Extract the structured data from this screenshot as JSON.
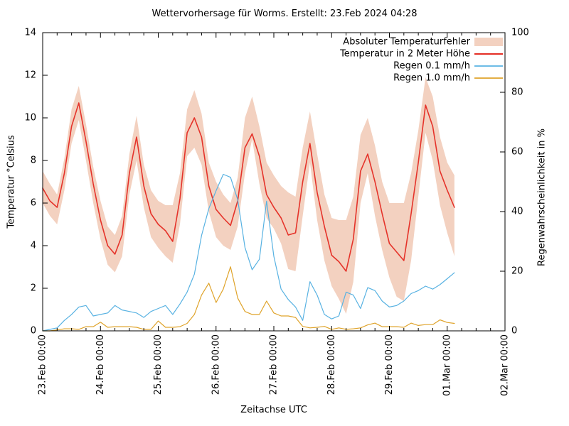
{
  "chart_data": {
    "type": "line",
    "title": "Wettervorhersage für Worms. Erstellt: 23.Feb 2024 04:28",
    "xlabel": "Zeitachse UTC",
    "ylabel_left": "Temperatur °Celsius",
    "ylabel_right": "Regenwahrscheinlichkeit in %",
    "x_tick_labels": [
      "23.Feb 00:00",
      "24.Feb 00:00",
      "25.Feb 00:00",
      "26.Feb 00:00",
      "27.Feb 00:00",
      "28.Feb 00:00",
      "29.Feb 00:00",
      "01.Mar 00:00",
      "02.Mar 00:00"
    ],
    "x_range_days": [
      0,
      8
    ],
    "x_minor_tick_hours": 6,
    "ylim_left": [
      0,
      14
    ],
    "yticks_left": [
      0,
      2,
      4,
      6,
      8,
      10,
      12,
      14
    ],
    "ylim_right": [
      0,
      100
    ],
    "yticks_right": [
      0,
      20,
      40,
      60,
      80,
      100
    ],
    "grid": false,
    "legend_position": "top-right-inside",
    "sample_step_hours": 3,
    "data_start": "23.Feb 00:00",
    "data_end_hours": 171,
    "series": [
      {
        "name": "Absoluter Temperaturfehler",
        "type": "band",
        "axis": "left",
        "color": "#f3d1c0",
        "upper": [
          7.5,
          6.9,
          6.4,
          8.1,
          10.4,
          11.5,
          9.7,
          7.7,
          6.1,
          4.9,
          4.5,
          5.4,
          8.3,
          10.1,
          7.8,
          6.6,
          6.1,
          5.9,
          5.9,
          7.4,
          10.4,
          11.3,
          10.2,
          7.9,
          7.0,
          6.4,
          6.0,
          7.2,
          10.0,
          11.0,
          9.6,
          7.9,
          7.3,
          6.8,
          6.5,
          6.3,
          8.6,
          10.3,
          8.3,
          6.4,
          5.3,
          5.2,
          5.2,
          6.3,
          9.2,
          10.0,
          8.7,
          7.0,
          6.0,
          6.0,
          6.0,
          7.4,
          9.4,
          11.9,
          11.0,
          9.1,
          7.9,
          7.3
        ],
        "lower": [
          6.0,
          5.4,
          5.0,
          6.6,
          8.8,
          9.9,
          8.0,
          6.0,
          4.3,
          3.1,
          2.75,
          3.5,
          6.4,
          8.0,
          5.8,
          4.4,
          3.9,
          3.5,
          3.2,
          5.0,
          8.2,
          8.6,
          7.8,
          5.6,
          4.4,
          4.0,
          3.8,
          4.9,
          7.4,
          9.0,
          6.9,
          5.3,
          4.8,
          4.1,
          2.9,
          2.8,
          5.4,
          7.9,
          5.2,
          3.3,
          2.1,
          1.5,
          0.8,
          2.3,
          6.0,
          7.4,
          5.4,
          3.8,
          2.5,
          1.6,
          1.4,
          3.3,
          6.3,
          9.3,
          8.0,
          5.9,
          4.6,
          3.5
        ]
      },
      {
        "name": "Temperatur in 2 Meter Höhe",
        "type": "line",
        "axis": "left",
        "color": "#e5332a",
        "stroke_width": 1.6,
        "values": [
          6.7,
          6.1,
          5.8,
          7.4,
          9.6,
          10.7,
          8.9,
          6.9,
          5.2,
          4.0,
          3.6,
          4.5,
          7.4,
          9.1,
          6.8,
          5.5,
          5.0,
          4.7,
          4.2,
          6.2,
          9.3,
          10.0,
          9.1,
          6.8,
          5.7,
          5.3,
          4.95,
          6.1,
          8.6,
          9.25,
          8.2,
          6.4,
          5.8,
          5.3,
          4.5,
          4.6,
          7.0,
          8.8,
          6.5,
          4.9,
          3.55,
          3.25,
          2.8,
          4.3,
          7.5,
          8.3,
          7.0,
          5.5,
          4.1,
          3.7,
          3.3,
          5.5,
          7.9,
          10.6,
          9.6,
          7.5,
          6.6,
          5.8
        ]
      },
      {
        "name": "Regen 0.1 mm/h",
        "type": "line",
        "axis": "right",
        "color": "#58b2e2",
        "stroke_width": 1.2,
        "values": [
          0,
          0.5,
          1,
          3.5,
          5.5,
          8,
          8.5,
          5,
          5.5,
          6,
          8.5,
          7,
          6.5,
          6,
          4.5,
          6.5,
          7.5,
          8.5,
          5.5,
          9,
          13,
          19,
          32,
          41,
          47,
          52.5,
          51.5,
          44,
          28,
          20.5,
          24,
          43.5,
          25,
          14,
          10.5,
          8,
          3.5,
          16.5,
          12,
          5.5,
          4,
          5,
          13,
          12,
          7.5,
          14.5,
          13.5,
          10,
          8,
          8.5,
          10,
          12.5,
          13.5,
          15,
          14,
          15.5,
          17.5,
          19.5
        ]
      },
      {
        "name": "Regen 1.0 mm/h",
        "type": "line",
        "axis": "right",
        "color": "#dfa32a",
        "stroke_width": 1.2,
        "values": [
          0,
          0,
          0.3,
          0.7,
          0.7,
          0.5,
          1.4,
          1.4,
          2.9,
          1.2,
          1.4,
          1.4,
          1.4,
          1.2,
          0.5,
          0.5,
          3.3,
          1.2,
          1.2,
          1.4,
          2.5,
          5.5,
          12,
          16,
          9.5,
          14,
          21.5,
          11,
          6.5,
          5.5,
          5.5,
          10,
          6,
          5,
          5,
          4.5,
          1.5,
          1,
          1.2,
          1.5,
          0.5,
          1,
          0.5,
          0.7,
          1,
          2,
          2.6,
          1.4,
          1.4,
          1.4,
          1.2,
          2.6,
          1.8,
          2.1,
          2.1,
          3.7,
          2.8,
          2.5
        ]
      }
    ]
  },
  "colors": {
    "background": "#ffffff",
    "axis": "#000000"
  }
}
